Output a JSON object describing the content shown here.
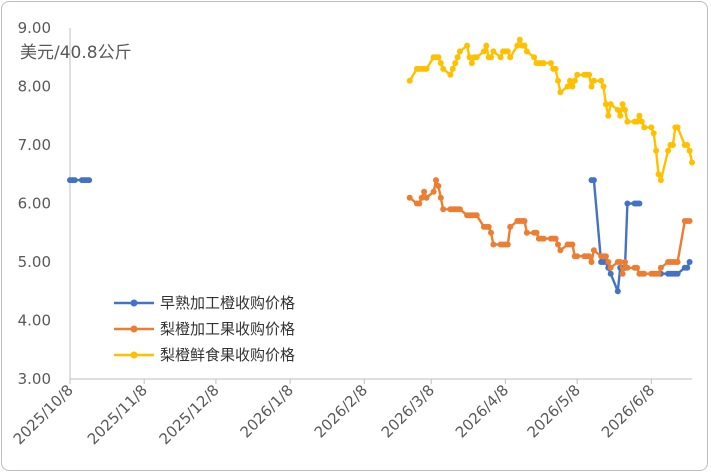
{
  "chart_data": {
    "type": "line",
    "unit_label": "美元/40.8公斤",
    "y_ticks": [
      "3.00",
      "4.00",
      "5.00",
      "6.00",
      "7.00",
      "8.00",
      "9.00"
    ],
    "ylim": [
      3,
      9
    ],
    "x_ticks": [
      "2025/10/8",
      "2025/11/8",
      "2025/12/8",
      "2026/1/8",
      "2026/2/8",
      "2026/3/8",
      "2026/4/8",
      "2026/5/8",
      "2026/6/8"
    ],
    "xlim": [
      "2025/10/8",
      "2026/6/25"
    ],
    "grid": false,
    "legend_position": "lower-left",
    "series": [
      {
        "name": "早熟加工橙收购价格",
        "color": "#4472C4",
        "points": [
          [
            "2025/10/8",
            6.4
          ],
          [
            "2025/10/9",
            6.4
          ],
          [
            "2025/10/10",
            6.4
          ],
          [
            "2025/10/13",
            6.4
          ],
          [
            "2025/10/14",
            6.4
          ],
          [
            "2025/10/15",
            6.4
          ],
          [
            "2025/10/16",
            6.4
          ],
          null,
          [
            "2026/5/14",
            6.4
          ],
          [
            "2026/5/15",
            6.4
          ],
          [
            "2026/5/18",
            5.0
          ],
          [
            "2026/5/19",
            5.0
          ],
          [
            "2026/5/20",
            5.0
          ],
          [
            "2026/5/21",
            4.9
          ],
          [
            "2026/5/22",
            4.8
          ],
          [
            "2026/5/25",
            4.5
          ],
          [
            "2026/5/26",
            4.9
          ],
          [
            "2026/5/27",
            4.9
          ],
          [
            "2026/5/28",
            4.9
          ],
          [
            "2026/5/29",
            6.0
          ],
          [
            "2026/6/1",
            6.0
          ],
          [
            "2026/6/2",
            6.0
          ],
          [
            "2026/6/3",
            6.0
          ],
          null,
          [
            "2026/6/12",
            4.8
          ],
          [
            "2026/6/15",
            4.8
          ],
          [
            "2026/6/16",
            4.8
          ],
          [
            "2026/6/17",
            4.8
          ],
          [
            "2026/6/18",
            4.8
          ],
          [
            "2026/6/19",
            4.8
          ],
          [
            "2026/6/22",
            4.9
          ],
          [
            "2026/6/23",
            4.9
          ],
          [
            "2026/6/24",
            5.0
          ]
        ]
      },
      {
        "name": "梨橙加工果收购价格",
        "color": "#ED7D31",
        "points": [
          [
            "2026/2/27",
            6.1
          ],
          [
            "2026/3/2",
            6.0
          ],
          [
            "2026/3/3",
            6.0
          ],
          [
            "2026/3/4",
            6.1
          ],
          [
            "2026/3/5",
            6.2
          ],
          [
            "2026/3/6",
            6.1
          ],
          [
            "2026/3/9",
            6.2
          ],
          [
            "2026/3/10",
            6.4
          ],
          [
            "2026/3/11",
            6.3
          ],
          [
            "2026/3/12",
            6.1
          ],
          [
            "2026/3/13",
            5.9
          ],
          [
            "2026/3/16",
            5.9
          ],
          [
            "2026/3/17",
            5.9
          ],
          [
            "2026/3/18",
            5.9
          ],
          [
            "2026/3/19",
            5.9
          ],
          [
            "2026/3/20",
            5.9
          ],
          [
            "2026/3/23",
            5.8
          ],
          [
            "2026/3/24",
            5.8
          ],
          [
            "2026/3/25",
            5.8
          ],
          [
            "2026/3/26",
            5.8
          ],
          [
            "2026/3/27",
            5.8
          ],
          [
            "2026/3/30",
            5.6
          ],
          [
            "2026/3/31",
            5.6
          ],
          [
            "2026/4/1",
            5.6
          ],
          [
            "2026/4/2",
            5.5
          ],
          [
            "2026/4/3",
            5.3
          ],
          [
            "2026/4/6",
            5.3
          ],
          [
            "2026/4/7",
            5.3
          ],
          [
            "2026/4/8",
            5.3
          ],
          [
            "2026/4/9",
            5.3
          ],
          [
            "2026/4/10",
            5.6
          ],
          [
            "2026/4/13",
            5.7
          ],
          [
            "2026/4/14",
            5.7
          ],
          [
            "2026/4/15",
            5.7
          ],
          [
            "2026/4/16",
            5.7
          ],
          [
            "2026/4/17",
            5.5
          ],
          [
            "2026/4/20",
            5.5
          ],
          [
            "2026/4/21",
            5.5
          ],
          [
            "2026/4/22",
            5.4
          ],
          [
            "2026/4/23",
            5.4
          ],
          [
            "2026/4/24",
            5.4
          ],
          [
            "2026/4/27",
            5.4
          ],
          [
            "2026/4/28",
            5.4
          ],
          [
            "2026/4/29",
            5.4
          ],
          [
            "2026/4/30",
            5.3
          ],
          [
            "2026/5/1",
            5.2
          ],
          [
            "2026/5/4",
            5.3
          ],
          [
            "2026/5/5",
            5.3
          ],
          [
            "2026/5/6",
            5.3
          ],
          [
            "2026/5/7",
            5.1
          ],
          [
            "2026/5/8",
            5.1
          ],
          [
            "2026/5/11",
            5.1
          ],
          [
            "2026/5/12",
            5.1
          ],
          [
            "2026/5/13",
            5.1
          ],
          [
            "2026/5/14",
            5.0
          ],
          [
            "2026/5/15",
            5.2
          ],
          [
            "2026/5/18",
            5.1
          ],
          [
            "2026/5/19",
            5.1
          ],
          [
            "2026/5/20",
            5.1
          ],
          [
            "2026/5/21",
            5.0
          ],
          [
            "2026/5/22",
            4.9
          ],
          [
            "2026/5/25",
            5.0
          ],
          [
            "2026/5/26",
            5.0
          ],
          [
            "2026/5/27",
            4.8
          ],
          [
            "2026/5/28",
            5.0
          ],
          [
            "2026/5/29",
            4.9
          ],
          [
            "2026/6/1",
            4.9
          ],
          [
            "2026/6/2",
            4.9
          ],
          [
            "2026/6/3",
            4.8
          ],
          [
            "2026/6/4",
            4.8
          ],
          [
            "2026/6/5",
            4.8
          ],
          [
            "2026/6/8",
            4.8
          ],
          [
            "2026/6/9",
            4.8
          ],
          [
            "2026/6/10",
            4.8
          ],
          [
            "2026/6/11",
            4.8
          ],
          [
            "2026/6/12",
            4.9
          ],
          [
            "2026/6/15",
            5.0
          ],
          [
            "2026/6/16",
            5.0
          ],
          [
            "2026/6/17",
            5.0
          ],
          [
            "2026/6/18",
            5.0
          ],
          [
            "2026/6/19",
            5.0
          ],
          [
            "2026/6/22",
            5.7
          ],
          [
            "2026/6/23",
            5.7
          ],
          [
            "2026/6/24",
            5.7
          ]
        ]
      },
      {
        "name": "梨橙鲜食果收购价格",
        "color": "#FFC000",
        "points": [
          [
            "2026/2/27",
            8.1
          ],
          [
            "2026/3/2",
            8.3
          ],
          [
            "2026/3/3",
            8.3
          ],
          [
            "2026/3/4",
            8.3
          ],
          [
            "2026/3/5",
            8.3
          ],
          [
            "2026/3/6",
            8.3
          ],
          [
            "2026/3/9",
            8.5
          ],
          [
            "2026/3/10",
            8.5
          ],
          [
            "2026/3/11",
            8.5
          ],
          [
            "2026/3/12",
            8.4
          ],
          [
            "2026/3/13",
            8.3
          ],
          [
            "2026/3/16",
            8.2
          ],
          [
            "2026/3/17",
            8.3
          ],
          [
            "2026/3/18",
            8.4
          ],
          [
            "2026/3/19",
            8.5
          ],
          [
            "2026/3/20",
            8.6
          ],
          [
            "2026/3/23",
            8.7
          ],
          [
            "2026/3/24",
            8.5
          ],
          [
            "2026/3/25",
            8.4
          ],
          [
            "2026/3/26",
            8.5
          ],
          [
            "2026/3/27",
            8.5
          ],
          [
            "2026/3/30",
            8.6
          ],
          [
            "2026/3/31",
            8.7
          ],
          [
            "2026/4/1",
            8.5
          ],
          [
            "2026/4/2",
            8.5
          ],
          [
            "2026/4/3",
            8.6
          ],
          [
            "2026/4/6",
            8.5
          ],
          [
            "2026/4/7",
            8.6
          ],
          [
            "2026/4/8",
            8.6
          ],
          [
            "2026/4/9",
            8.6
          ],
          [
            "2026/4/10",
            8.5
          ],
          [
            "2026/4/13",
            8.7
          ],
          [
            "2026/4/14",
            8.8
          ],
          [
            "2026/4/15",
            8.7
          ],
          [
            "2026/4/16",
            8.7
          ],
          [
            "2026/4/17",
            8.6
          ],
          [
            "2026/4/20",
            8.5
          ],
          [
            "2026/4/21",
            8.4
          ],
          [
            "2026/4/22",
            8.4
          ],
          [
            "2026/4/23",
            8.4
          ],
          [
            "2026/4/24",
            8.4
          ],
          [
            "2026/4/27",
            8.4
          ],
          [
            "2026/4/28",
            8.3
          ],
          [
            "2026/4/29",
            8.3
          ],
          [
            "2026/4/30",
            8.1
          ],
          [
            "2026/5/1",
            7.9
          ],
          [
            "2026/5/4",
            8.0
          ],
          [
            "2026/5/5",
            8.1
          ],
          [
            "2026/5/6",
            8.0
          ],
          [
            "2026/5/7",
            8.1
          ],
          [
            "2026/5/8",
            8.2
          ],
          [
            "2026/5/11",
            8.2
          ],
          [
            "2026/5/12",
            8.2
          ],
          [
            "2026/5/13",
            8.2
          ],
          [
            "2026/5/14",
            8.0
          ],
          [
            "2026/5/15",
            8.1
          ],
          [
            "2026/5/18",
            8.1
          ],
          [
            "2026/5/19",
            8.0
          ],
          [
            "2026/5/20",
            7.7
          ],
          [
            "2026/5/21",
            7.5
          ],
          [
            "2026/5/22",
            7.7
          ],
          [
            "2026/5/25",
            7.6
          ],
          [
            "2026/5/26",
            7.5
          ],
          [
            "2026/5/27",
            7.7
          ],
          [
            "2026/5/28",
            7.6
          ],
          [
            "2026/5/29",
            7.4
          ],
          [
            "2026/6/1",
            7.4
          ],
          [
            "2026/6/2",
            7.4
          ],
          [
            "2026/6/3",
            7.5
          ],
          [
            "2026/6/4",
            7.4
          ],
          [
            "2026/6/5",
            7.3
          ],
          [
            "2026/6/8",
            7.3
          ],
          [
            "2026/6/9",
            7.2
          ],
          [
            "2026/6/10",
            6.9
          ],
          [
            "2026/6/11",
            6.5
          ],
          [
            "2026/6/12",
            6.4
          ],
          [
            "2026/6/15",
            6.9
          ],
          [
            "2026/6/16",
            7.0
          ],
          [
            "2026/6/17",
            7.0
          ],
          [
            "2026/6/18",
            7.3
          ],
          [
            "2026/6/19",
            7.3
          ],
          [
            "2026/6/22",
            7.0
          ],
          [
            "2026/6/23",
            7.0
          ],
          [
            "2026/6/24",
            6.9
          ],
          [
            "2026/6/25",
            6.7
          ]
        ]
      }
    ]
  }
}
